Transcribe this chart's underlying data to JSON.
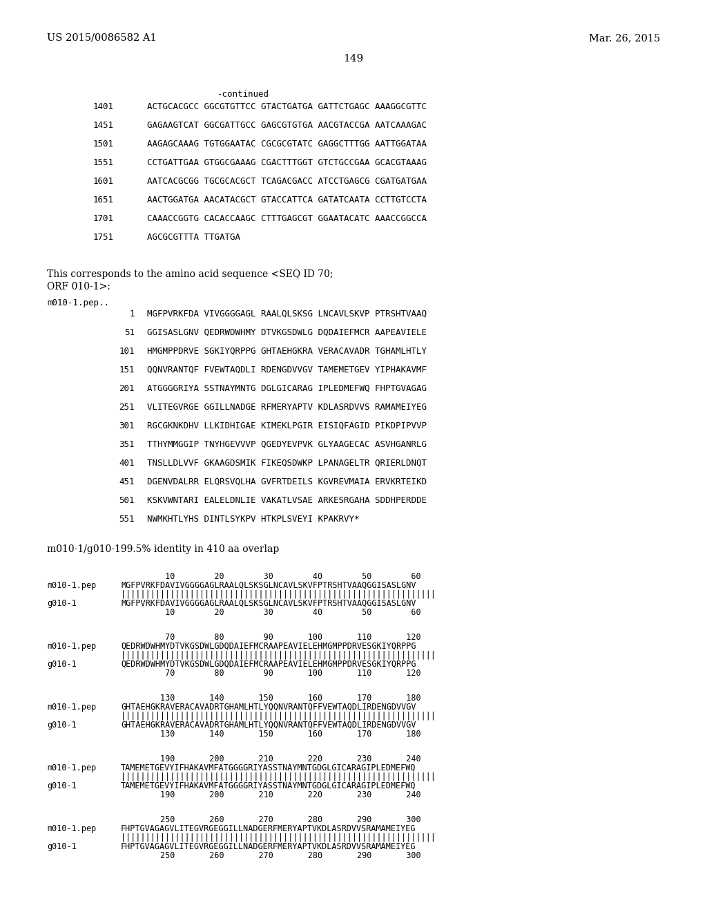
{
  "header_left": "US 2015/0086582 A1",
  "header_right": "Mar. 26, 2015",
  "page_number": "149",
  "background_color": "#ffffff",
  "text_color": "#000000",
  "continued_label": "-continued",
  "dna_lines": [
    [
      "1401",
      "ACTGCACGCC GGCGTGTTCC GTACTGATGA GATTCTGAGC AAAGGCGTTC"
    ],
    [
      "1451",
      "GAGAAGTCAT GGCGATTGCC GAGCGTGTGA AACGTACCGA AATCAAAGAC"
    ],
    [
      "1501",
      "AAGAGCAAAG TGTGGAATAC CGCGCGTATC GAGGCTTTGG AATTGGATAA"
    ],
    [
      "1551",
      "CCTGATTGAA GTGGCGAAAG CGACTTTGGT GTCTGCCGAA GCACGTAAAG"
    ],
    [
      "1601",
      "AATCACGCGG TGCGCACGCT TCAGACGACC ATCCTGAGCG CGATGATGAA"
    ],
    [
      "1651",
      "AACTGGATGA AACATACGCT GTACCATTCA GATATCAATA CCTTGTCCTA"
    ],
    [
      "1701",
      "CAAACCGGTG CACACCAAGC CTTTGAGCGT GGAATACATC AAACCGGCCA"
    ],
    [
      "1751",
      "AGCGCGTTTA TTGATGA"
    ]
  ],
  "text_line1": "This corresponds to the amino acid sequence <SEQ ID 70;",
  "text_line2": "ORF 010-1>:",
  "pep_label": "m010-1.pep..",
  "pep_lines": [
    [
      "1",
      "MGFPVRKFDA VIVGGGGAGL RAALQLSKSG LNCAVLSKVP PTRSHTVAAQ"
    ],
    [
      "51",
      "GGISASLGNV QEDRWDWHMY DTVKGSDWLG DQDAIEFMCR AAPEAVIELE"
    ],
    [
      "101",
      "HMGMPPDRVE SGKIYQRPPG GHTAEHGKRA VERACAVADR TGHAMLHTLY"
    ],
    [
      "151",
      "QQNVRANTQF FVEWTAQDLI RDENGDVVGV TAMEMETGEV YIPHAKAVMF"
    ],
    [
      "201",
      "ATGGGGRIYA SSTNAYMNTG DGLGICARAG IPLEDMEFWQ FHPTGVAGAG"
    ],
    [
      "251",
      "VLITEGVRGE GGILLNADGE RFMERYAPTV KDLASRDVVS RAMAMEIYEG"
    ],
    [
      "301",
      "RGCGKNKDHV LLKIDHIGAE KIMEKLPGIR EISIQFAGID PIKDPIPVVP"
    ],
    [
      "351",
      "TTHYMMGGIP TNYHGEVVVP QGEDYEVPVK GLYAAGECAC ASVHGANRLG"
    ],
    [
      "401",
      "TNSLLDLVVF GKAAGDSMIK FIKEQSDWKP LPANAGELTR QRIERLDNQT"
    ],
    [
      "451",
      "DGENVDALRR ELQRSVQLHA GVFRTDEILS KGVREVMAIA ERVKRTEIKD"
    ],
    [
      "501",
      "KSKVWNTARI EALELDNLIE VAKATLVSAE ARKESRGAHA SDDHPERDDE"
    ],
    [
      "551",
      "NWMKHTLYHS DINTLSYKPV HTKPLSVEYI KPAKRVY*"
    ]
  ],
  "identity_line": "m010-1/g010-199.5% identity in 410 aa overlap",
  "align_blocks": [
    {
      "num_line": "         10        20        30        40        50        60",
      "label1": "m010-1.pep",
      "seq1": "MGFPVRKFDAVIVGGGGAGLRAALQLSKSGLNCAVLSKVFPTRSHTVAAQGGISASLGNV",
      "bars": "||||||||||||||||||||||||||||||||||||||||||||||||||||||||||||||||",
      "label2": "g010-1",
      "seq2": "MGFPVRKFDAVIVGGGGAGLRAALQLSKSGLNCAVLSKVFPTRSHTVAAQGGISASLGNV",
      "num_line2": "         10        20        30        40        50        60"
    },
    {
      "num_line": "         70        80        90       100       110       120",
      "label1": "m010-1.pep",
      "seq1": "QEDRWDWHMYDTVKGSDWLGDQDAIEFMCRAAPEAVIELEHMGMPPDRVESGKIYQRPPG",
      "bars": "||||||||||||||||||||||||||||||||||||||||||||||||||||||||||||||||",
      "label2": "g010-1",
      "seq2": "QEDRWDWHMYDTVKGSDWLGDQDAIEFMCRAAPEAVIELEHMGMPPDRVESGKIYQRPPG",
      "num_line2": "         70        80        90       100       110       120"
    },
    {
      "num_line": "        130       140       150       160       170       180",
      "label1": "m010-1.pep",
      "seq1": "GHTAEHGKRAVERACAVADRTGHAMLHTLYQQNVRANTQFFVEWTAQDLIRDENGDVVGV",
      "bars": "||||||||||||||||||||||||||||||||||||||||||||||||||||||||||||||||",
      "label2": "g010-1",
      "seq2": "GHTAEHGKRAVERACAVADRTGHAMLHTLYQQNVRANTQFFVEWTAQDLIRDENGDVVGV",
      "num_line2": "        130       140       150       160       170       180"
    },
    {
      "num_line": "        190       200       210       220       230       240",
      "label1": "m010-1.pep",
      "seq1": "TAMEMETGEVYIFHAKAVMFATGGGGRIYASSTNAYMNTGDGLGICARAGIPLEDMEFWQ",
      "bars": "||||||||||||||||||||||||||||||||||||||||||||||||||||||||||||||||",
      "label2": "g010-1",
      "seq2": "TAMEMETGEVYIFHAKAVMFATGGGGRIYASSTNAYMNTGDGLGICARAGIPLEDMEFWQ",
      "num_line2": "        190       200       210       220       230       240"
    },
    {
      "num_line": "        250       260       270       280       290       300",
      "label1": "m010-1.pep",
      "seq1": "FHPTGVAGAGVLITEGVRGEGGILLNADGERFMERYAPTVKDLASRDVVSRAMAMEIYEG",
      "bars": "||||||||||||||||||||||||||||||||||||||||||||||||||||||||||||||||",
      "label2": "g010-1",
      "seq2": "FHPTGVAGAGVLITEGVRGEGGILLNADGERFMERYAPTVKDLASRDVVSRAMAMEIYEG",
      "num_line2": "        250       260       270       280       290       300"
    }
  ]
}
